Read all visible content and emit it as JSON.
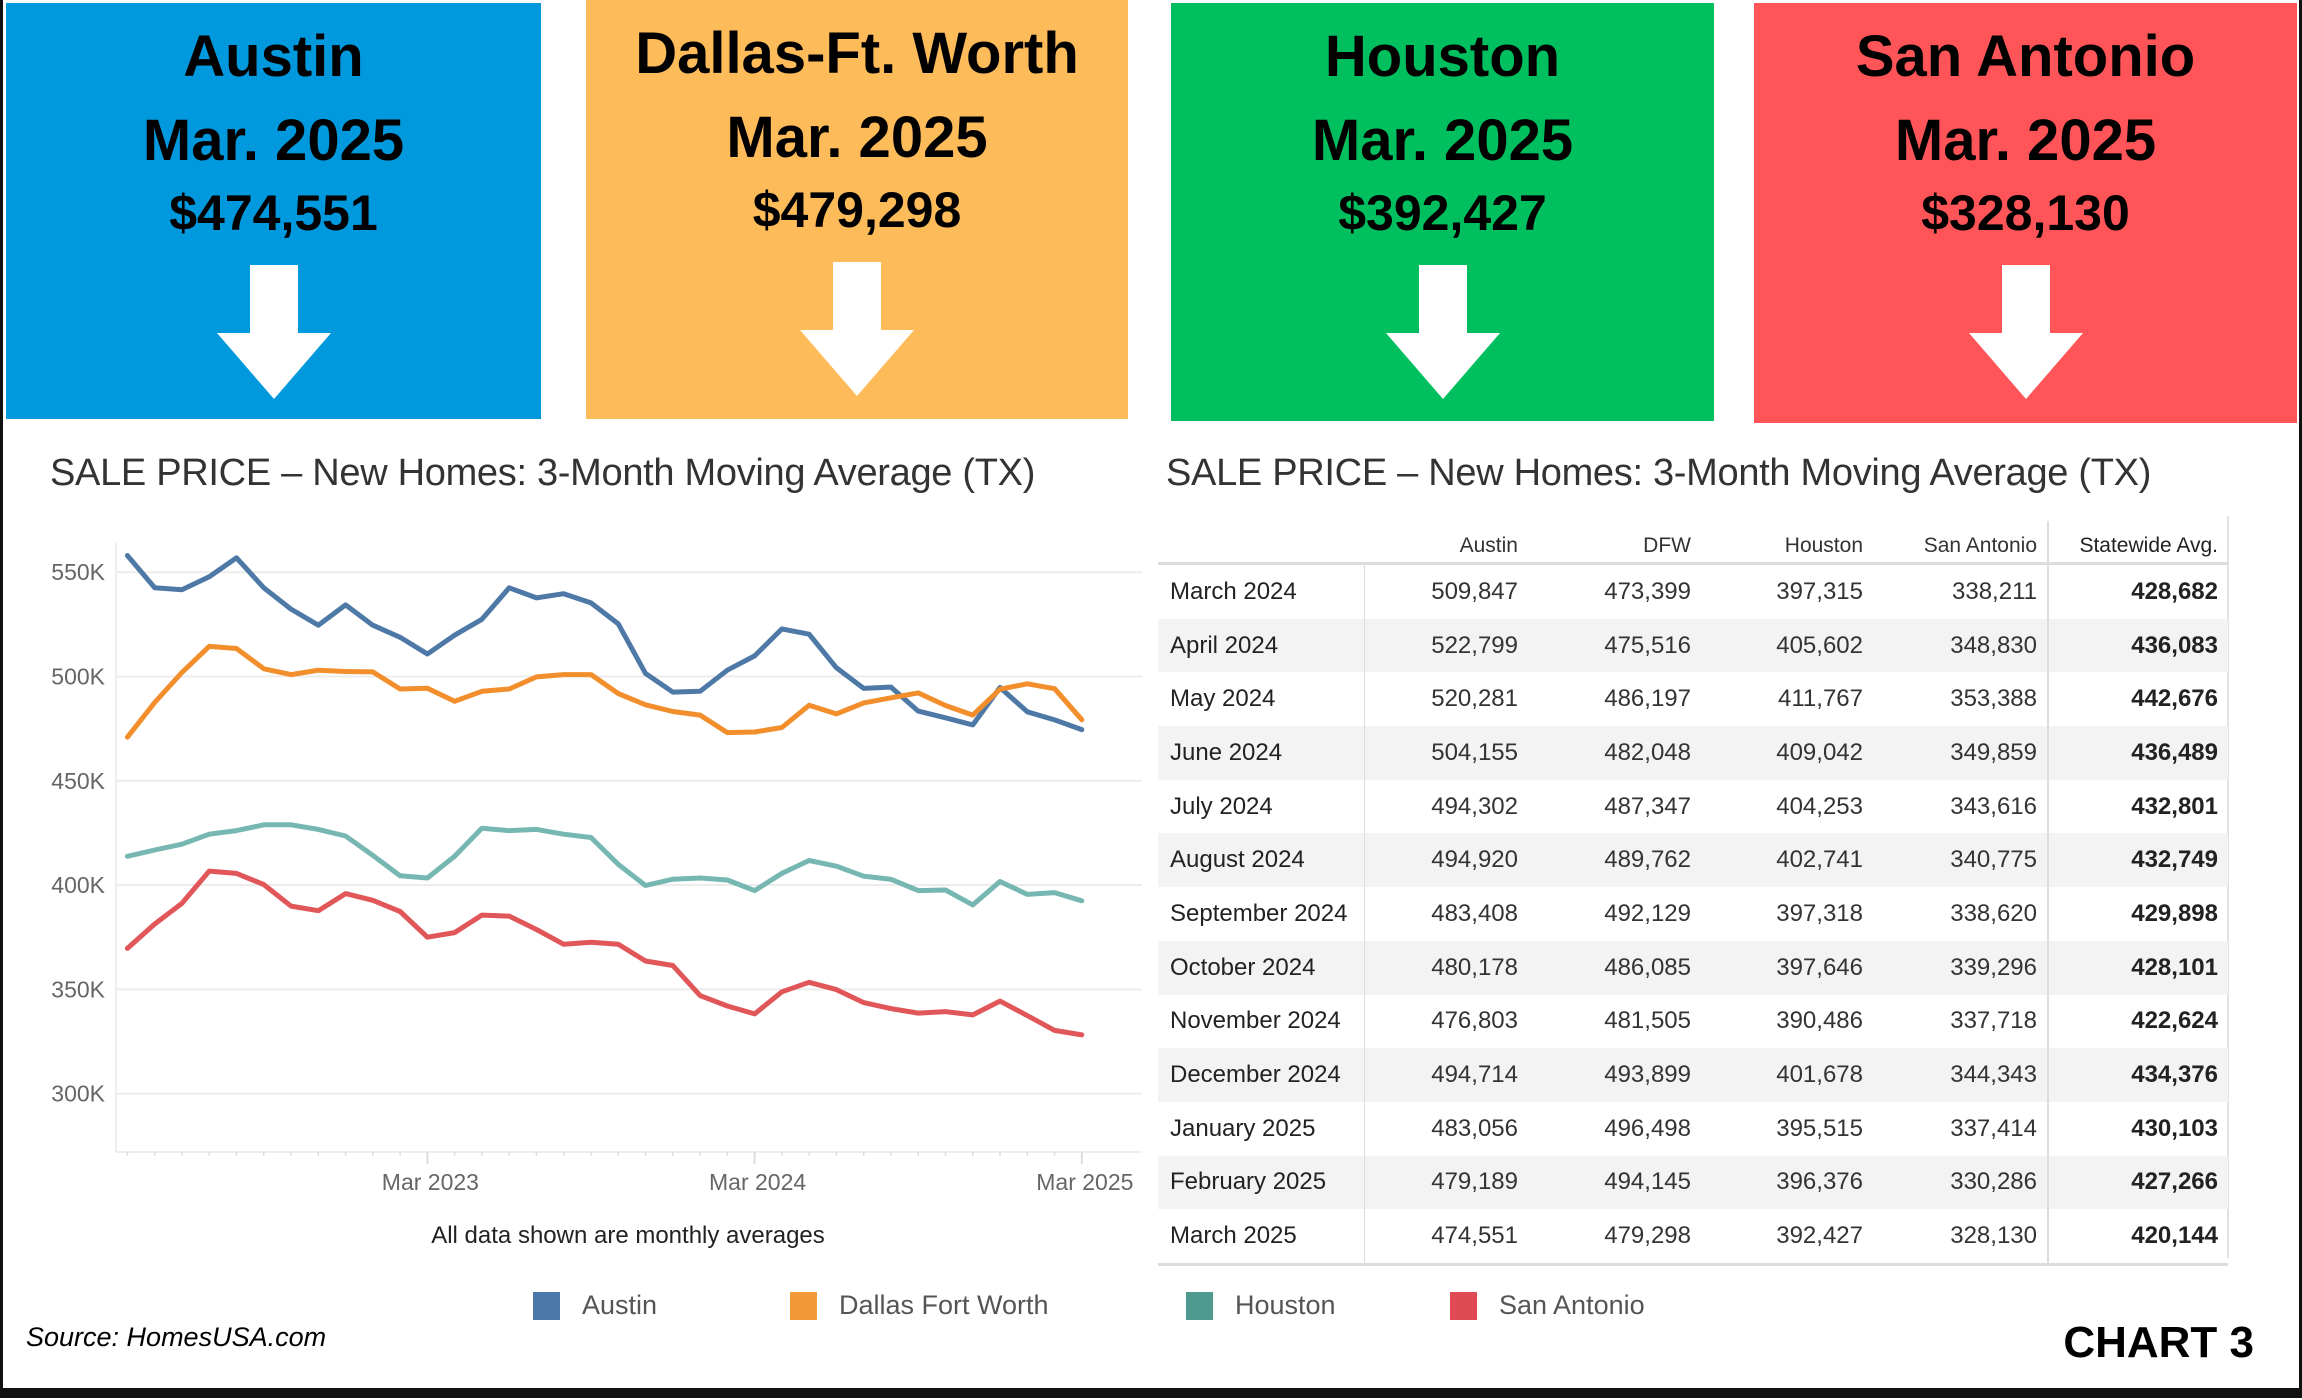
{
  "header_cards": [
    {
      "city": "Austin",
      "month": "Mar. 2025",
      "price": "$474,551",
      "color": "#0099dd",
      "icon": "arrow-down-icon"
    },
    {
      "city": "Dallas-Ft. Worth",
      "month": "Mar. 2025",
      "price": "$479,298",
      "color": "#fdbb5a",
      "icon": "arrow-down-icon"
    },
    {
      "city": "Houston",
      "month": "Mar. 2025",
      "price": "$392,427",
      "color": "#00bf5f",
      "icon": "arrow-down-icon"
    },
    {
      "city": "San Antonio",
      "month": "Mar. 2025",
      "price": "$328,130",
      "color": "#ff5558",
      "icon": "arrow-down-icon"
    }
  ],
  "chart_title": "SALE PRICE – New Homes: 3-Month Moving Average (TX)",
  "table_title": "SALE PRICE – New Homes: 3-Month Moving Average (TX)",
  "caption": "All data shown are monthly averages",
  "source": "Source: HomesUSA.com",
  "chart_label": "CHART 3",
  "chart_data": {
    "type": "line",
    "title": "SALE PRICE – New Homes: 3-Month Moving Average (TX)",
    "xlabel": "",
    "ylabel": "",
    "x": [
      "2022-04",
      "2022-05",
      "2022-06",
      "2022-07",
      "2022-08",
      "2022-09",
      "2022-10",
      "2022-11",
      "2022-12",
      "2023-01",
      "2023-02",
      "2023-03",
      "2023-04",
      "2023-05",
      "2023-06",
      "2023-07",
      "2023-08",
      "2023-09",
      "2023-10",
      "2023-11",
      "2023-12",
      "2024-01",
      "2024-02",
      "2024-03",
      "2024-04",
      "2024-05",
      "2024-06",
      "2024-07",
      "2024-08",
      "2024-09",
      "2024-10",
      "2024-11",
      "2024-12",
      "2025-01",
      "2025-02",
      "2025-03"
    ],
    "x_ticks": [
      {
        "label": "Mar 2023",
        "x": "2023-03"
      },
      {
        "label": "Mar 2024",
        "x": "2024-03"
      },
      {
        "label": "Mar 2025",
        "x": "2025-03"
      }
    ],
    "y_ticks": [
      {
        "label": "300K",
        "value": 300000
      },
      {
        "label": "350K",
        "value": 350000
      },
      {
        "label": "400K",
        "value": 400000
      },
      {
        "label": "450K",
        "value": 450000
      },
      {
        "label": "500K",
        "value": 500000
      },
      {
        "label": "550K",
        "value": 550000
      }
    ],
    "ylim": [
      272000,
      564000
    ],
    "grid": true,
    "legend_position": "bottom",
    "series": [
      {
        "name": "Austin",
        "color": "#4e79a7",
        "values": [
          558000,
          542500,
          541600,
          547800,
          556900,
          542500,
          532300,
          524600,
          534300,
          524600,
          518800,
          510800,
          519800,
          527400,
          542500,
          537700,
          539700,
          535300,
          525200,
          501500,
          492500,
          492900,
          503000,
          509847,
          522799,
          520281,
          504155,
          494302,
          494920,
          483408,
          480178,
          476803,
          494714,
          483056,
          479189,
          474551
        ]
      },
      {
        "name": "Dallas Fort Worth",
        "color": "#f28e2b",
        "values": [
          470900,
          487500,
          501900,
          514400,
          513400,
          503700,
          500900,
          503000,
          502400,
          502200,
          494000,
          494400,
          488100,
          492900,
          494000,
          499800,
          500900,
          500900,
          491800,
          486400,
          483200,
          481500,
          473100,
          473399,
          475516,
          486197,
          482048,
          487347,
          489762,
          492129,
          486085,
          481505,
          493899,
          496498,
          494145,
          479298
        ]
      },
      {
        "name": "Houston",
        "color": "#76b7b2",
        "values": [
          413800,
          416800,
          419600,
          424400,
          426100,
          428900,
          428900,
          426700,
          423500,
          414200,
          404500,
          403400,
          413800,
          427200,
          426100,
          426700,
          424400,
          422800,
          409900,
          399800,
          402800,
          403400,
          402400,
          397315,
          405602,
          411767,
          409042,
          404253,
          402741,
          397318,
          397646,
          390486,
          401678,
          395515,
          396376,
          392427
        ]
      },
      {
        "name": "San Antonio",
        "color": "#e15759",
        "values": [
          369600,
          381300,
          391200,
          406700,
          405600,
          400200,
          389900,
          387700,
          395900,
          392700,
          387300,
          375000,
          377200,
          385600,
          385100,
          378700,
          371600,
          372600,
          371600,
          363600,
          361400,
          347000,
          342000,
          338211,
          348830,
          353388,
          349859,
          343616,
          340775,
          338620,
          339296,
          337718,
          344343,
          337414,
          330286,
          328130
        ]
      }
    ]
  },
  "legend": [
    {
      "label": "Austin",
      "color": "#4a78a8"
    },
    {
      "label": "Dallas Fort Worth",
      "color": "#f39a38"
    },
    {
      "label": "Houston",
      "color": "#4e9a8e"
    },
    {
      "label": "San Antonio",
      "color": "#e04a55"
    }
  ],
  "table": {
    "columns": [
      "",
      "Austin",
      "DFW",
      "Houston",
      "San Antonio",
      "Statewide Avg."
    ],
    "rows": [
      [
        "March 2024",
        "509,847",
        "473,399",
        "397,315",
        "338,211",
        "428,682"
      ],
      [
        "April 2024",
        "522,799",
        "475,516",
        "405,602",
        "348,830",
        "436,083"
      ],
      [
        "May 2024",
        "520,281",
        "486,197",
        "411,767",
        "353,388",
        "442,676"
      ],
      [
        "June 2024",
        "504,155",
        "482,048",
        "409,042",
        "349,859",
        "436,489"
      ],
      [
        "July 2024",
        "494,302",
        "487,347",
        "404,253",
        "343,616",
        "432,801"
      ],
      [
        "August 2024",
        "494,920",
        "489,762",
        "402,741",
        "340,775",
        "432,749"
      ],
      [
        "September 2024",
        "483,408",
        "492,129",
        "397,318",
        "338,620",
        "429,898"
      ],
      [
        "October 2024",
        "480,178",
        "486,085",
        "397,646",
        "339,296",
        "428,101"
      ],
      [
        "November 2024",
        "476,803",
        "481,505",
        "390,486",
        "337,718",
        "422,624"
      ],
      [
        "December 2024",
        "494,714",
        "493,899",
        "401,678",
        "344,343",
        "434,376"
      ],
      [
        "January 2025",
        "483,056",
        "496,498",
        "395,515",
        "337,414",
        "430,103"
      ],
      [
        "February 2025",
        "479,189",
        "494,145",
        "396,376",
        "330,286",
        "427,266"
      ],
      [
        "March 2025",
        "474,551",
        "479,298",
        "392,427",
        "328,130",
        "420,144"
      ]
    ]
  }
}
